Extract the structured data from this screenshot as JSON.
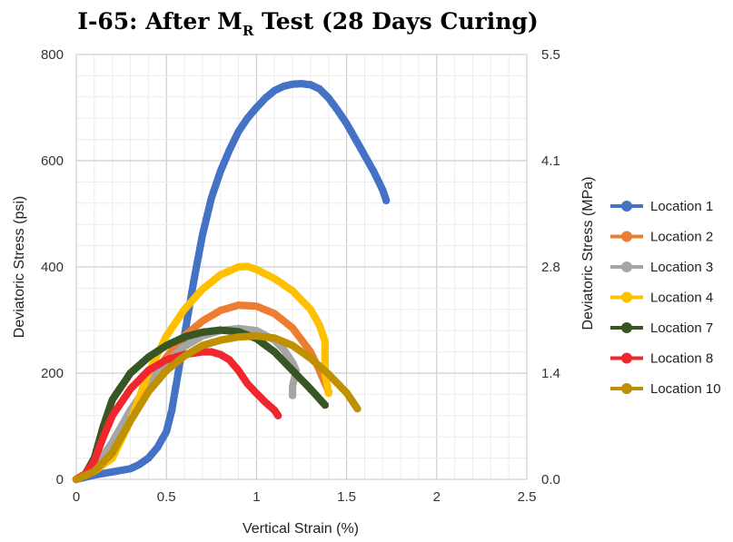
{
  "chart_data": {
    "type": "line",
    "title": {
      "main": "I-65: After M",
      "subscript": "R",
      "rest": " Test (28 Days Curing)"
    },
    "xlabel": "Vertical Strain (%)",
    "ylabel_left": "Deviatoric Stress (psi)",
    "ylabel_right": "Deviatoric Stress (MPa)",
    "xlim": [
      0,
      2.5
    ],
    "ylim_left": [
      0,
      800
    ],
    "x_ticks": [
      "0",
      "0.5",
      "1",
      "1.5",
      "2",
      "2.5"
    ],
    "y_ticks_left": [
      "0",
      "200",
      "400",
      "600",
      "800"
    ],
    "y_ticks_right": [
      "0.0",
      "1.4",
      "2.8",
      "4.1",
      "5.5"
    ],
    "grid": true,
    "legend_position": "right",
    "series": [
      {
        "name": "Location 1",
        "color": "#4472C4",
        "points": [
          [
            0,
            0
          ],
          [
            0.1,
            8
          ],
          [
            0.2,
            14
          ],
          [
            0.3,
            20
          ],
          [
            0.35,
            28
          ],
          [
            0.4,
            40
          ],
          [
            0.45,
            60
          ],
          [
            0.5,
            90
          ],
          [
            0.53,
            130
          ],
          [
            0.56,
            190
          ],
          [
            0.6,
            270
          ],
          [
            0.65,
            370
          ],
          [
            0.7,
            460
          ],
          [
            0.75,
            530
          ],
          [
            0.8,
            580
          ],
          [
            0.85,
            620
          ],
          [
            0.9,
            655
          ],
          [
            0.95,
            680
          ],
          [
            1.0,
            700
          ],
          [
            1.05,
            718
          ],
          [
            1.1,
            732
          ],
          [
            1.15,
            740
          ],
          [
            1.2,
            744
          ],
          [
            1.25,
            745
          ],
          [
            1.3,
            743
          ],
          [
            1.35,
            735
          ],
          [
            1.4,
            718
          ],
          [
            1.45,
            695
          ],
          [
            1.5,
            670
          ],
          [
            1.55,
            640
          ],
          [
            1.6,
            610
          ],
          [
            1.65,
            580
          ],
          [
            1.7,
            545
          ],
          [
            1.72,
            525
          ]
        ]
      },
      {
        "name": "Location 2",
        "color": "#ED7D31",
        "points": [
          [
            0,
            0
          ],
          [
            0.1,
            20
          ],
          [
            0.2,
            60
          ],
          [
            0.3,
            120
          ],
          [
            0.4,
            180
          ],
          [
            0.5,
            230
          ],
          [
            0.6,
            270
          ],
          [
            0.7,
            298
          ],
          [
            0.8,
            318
          ],
          [
            0.9,
            328
          ],
          [
            1.0,
            326
          ],
          [
            1.1,
            312
          ],
          [
            1.2,
            285
          ],
          [
            1.3,
            240
          ],
          [
            1.35,
            205
          ],
          [
            1.4,
            165
          ]
        ]
      },
      {
        "name": "Location 3",
        "color": "#A5A5A5",
        "points": [
          [
            0,
            0
          ],
          [
            0.1,
            20
          ],
          [
            0.2,
            70
          ],
          [
            0.3,
            130
          ],
          [
            0.4,
            180
          ],
          [
            0.5,
            220
          ],
          [
            0.6,
            250
          ],
          [
            0.7,
            270
          ],
          [
            0.8,
            280
          ],
          [
            0.9,
            284
          ],
          [
            1.0,
            280
          ],
          [
            1.1,
            262
          ],
          [
            1.15,
            245
          ],
          [
            1.2,
            220
          ],
          [
            1.22,
            205
          ],
          [
            1.2,
            175
          ],
          [
            1.2,
            158
          ]
        ]
      },
      {
        "name": "Location 4",
        "color": "#FFC000",
        "points": [
          [
            0,
            0
          ],
          [
            0.1,
            15
          ],
          [
            0.2,
            40
          ],
          [
            0.3,
            110
          ],
          [
            0.4,
            200
          ],
          [
            0.5,
            270
          ],
          [
            0.6,
            320
          ],
          [
            0.7,
            358
          ],
          [
            0.8,
            385
          ],
          [
            0.9,
            400
          ],
          [
            0.95,
            401
          ],
          [
            1.0,
            395
          ],
          [
            1.1,
            378
          ],
          [
            1.2,
            355
          ],
          [
            1.3,
            320
          ],
          [
            1.35,
            290
          ],
          [
            1.38,
            260
          ],
          [
            1.38,
            240
          ],
          [
            1.38,
            200
          ],
          [
            1.4,
            162
          ]
        ]
      },
      {
        "name": "Location 7",
        "color": "#375623",
        "points": [
          [
            0,
            0
          ],
          [
            0.05,
            10
          ],
          [
            0.1,
            40
          ],
          [
            0.15,
            100
          ],
          [
            0.2,
            150
          ],
          [
            0.3,
            200
          ],
          [
            0.4,
            230
          ],
          [
            0.5,
            252
          ],
          [
            0.6,
            268
          ],
          [
            0.7,
            277
          ],
          [
            0.8,
            281
          ],
          [
            0.9,
            278
          ],
          [
            1.0,
            265
          ],
          [
            1.1,
            240
          ],
          [
            1.2,
            205
          ],
          [
            1.3,
            170
          ],
          [
            1.38,
            140
          ]
        ]
      },
      {
        "name": "Location 8",
        "color": "#F0272E",
        "points": [
          [
            0,
            0
          ],
          [
            0.05,
            10
          ],
          [
            0.1,
            35
          ],
          [
            0.15,
            80
          ],
          [
            0.2,
            120
          ],
          [
            0.3,
            170
          ],
          [
            0.4,
            205
          ],
          [
            0.5,
            225
          ],
          [
            0.6,
            235
          ],
          [
            0.7,
            240
          ],
          [
            0.75,
            240
          ],
          [
            0.8,
            235
          ],
          [
            0.85,
            225
          ],
          [
            0.9,
            205
          ],
          [
            0.95,
            180
          ],
          [
            1.0,
            162
          ],
          [
            1.05,
            145
          ],
          [
            1.1,
            130
          ],
          [
            1.12,
            120
          ]
        ]
      },
      {
        "name": "Location 10",
        "color": "#BF9000",
        "points": [
          [
            0,
            0
          ],
          [
            0.1,
            15
          ],
          [
            0.2,
            50
          ],
          [
            0.3,
            110
          ],
          [
            0.4,
            165
          ],
          [
            0.5,
            205
          ],
          [
            0.6,
            232
          ],
          [
            0.7,
            252
          ],
          [
            0.8,
            262
          ],
          [
            0.9,
            268
          ],
          [
            1.0,
            270
          ],
          [
            1.1,
            266
          ],
          [
            1.2,
            252
          ],
          [
            1.3,
            228
          ],
          [
            1.4,
            198
          ],
          [
            1.5,
            163
          ],
          [
            1.56,
            133
          ]
        ]
      }
    ]
  }
}
